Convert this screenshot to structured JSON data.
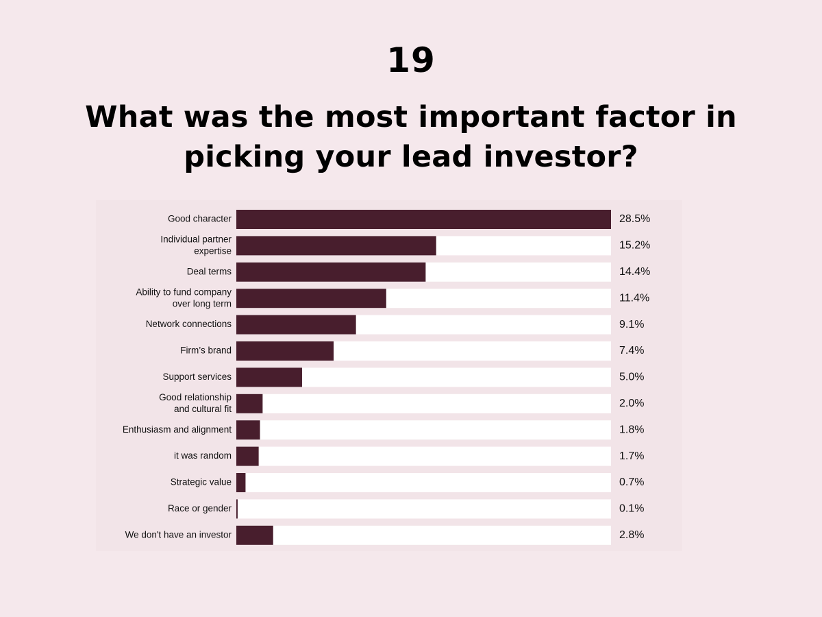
{
  "header": {
    "number": "19",
    "title": "What was the most important factor in picking your lead investor?"
  },
  "colors": {
    "background": "#f5e8ec",
    "panel": "#f2e4e8",
    "bar": "#481e2d",
    "track": "#ffffff"
  },
  "chart_data": {
    "type": "bar",
    "orientation": "horizontal",
    "title": "What was the most important factor in picking your lead investor?",
    "xlabel": "",
    "ylabel": "",
    "xlim": [
      0,
      28.5
    ],
    "grid": false,
    "legend": "none",
    "categories": [
      [
        "Good character"
      ],
      [
        "Individual partner",
        "expertise"
      ],
      [
        "Deal terms"
      ],
      [
        "Ability to fund company",
        "over long term"
      ],
      [
        "Network connections"
      ],
      [
        "Firm’s brand"
      ],
      [
        "Support services"
      ],
      [
        "Good relationship",
        "and cultural fit"
      ],
      [
        "Enthusiasm and alignment"
      ],
      [
        "it was random"
      ],
      [
        "Strategic value"
      ],
      [
        "Race or gender"
      ],
      [
        "We don't have an investor"
      ]
    ],
    "values": [
      28.5,
      15.2,
      14.4,
      11.4,
      9.1,
      7.4,
      5.0,
      2.0,
      1.8,
      1.7,
      0.7,
      0.1,
      2.8
    ],
    "value_labels": [
      "28.5%",
      "15.2%",
      "14.4%",
      "11.4%",
      "9.1%",
      "7.4%",
      "5.0%",
      "2.0%",
      "1.8%",
      "1.7%",
      "0.7%",
      "0.1%",
      "2.8%"
    ]
  }
}
